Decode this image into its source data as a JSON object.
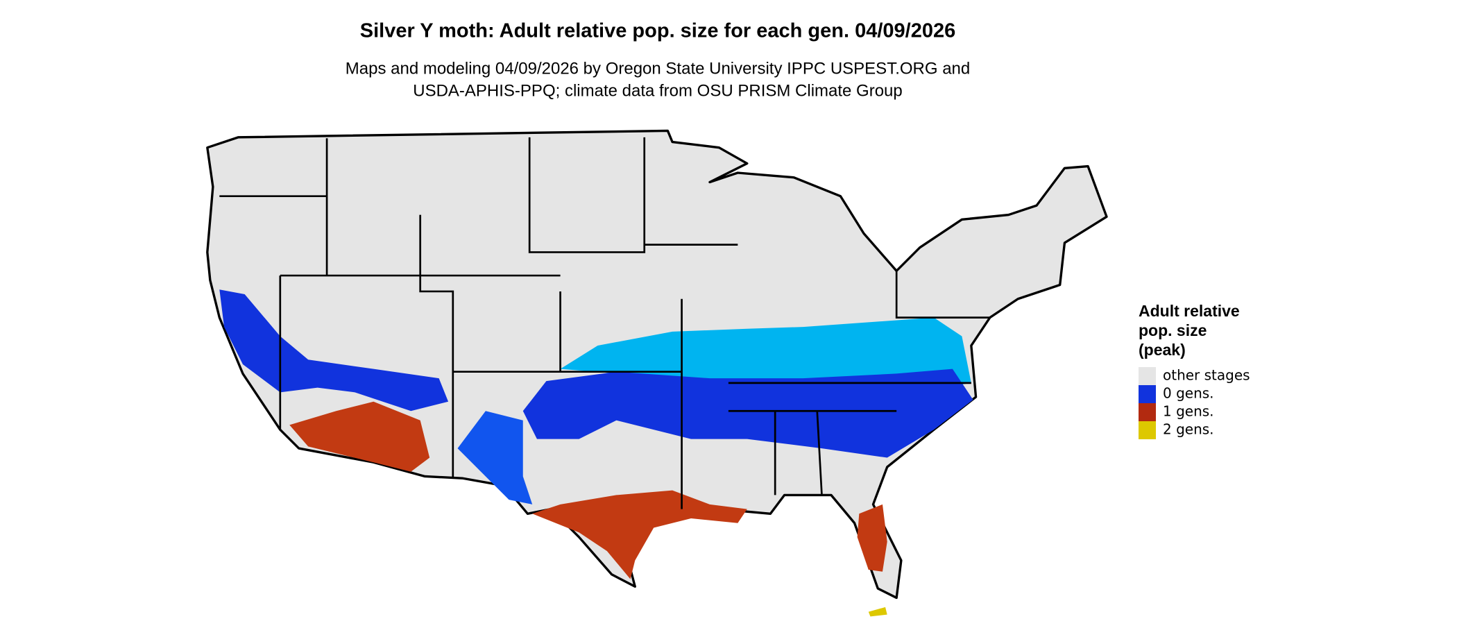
{
  "title": "Silver Y moth: Adult relative pop. size for each gen. 04/09/2026",
  "subtitle": [
    "Maps and modeling 04/09/2026 by Oregon State University IPPC USPEST.ORG and",
    "USDA-APHIS-PPQ; climate data from OSU PRISM Climate Group"
  ],
  "legend": {
    "title": [
      "Adult relative",
      "pop. size",
      "(peak)"
    ],
    "items": [
      {
        "label": "other stages",
        "color": "#e5e5e5"
      },
      {
        "label": "0 gens.",
        "color": "#1133dd"
      },
      {
        "label": "1 gens.",
        "color": "#b22a10"
      },
      {
        "label": "2 gens.",
        "color": "#ddc800"
      }
    ]
  }
}
